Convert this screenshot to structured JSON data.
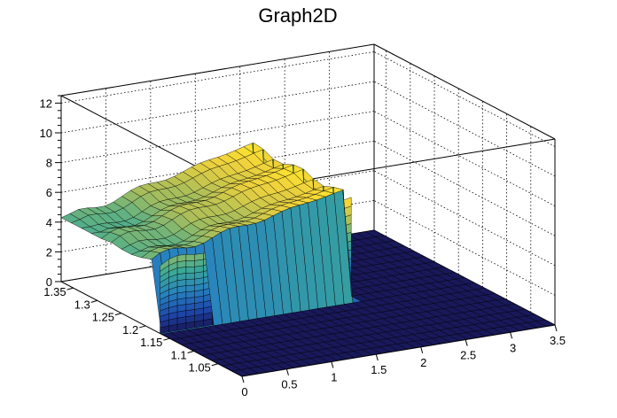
{
  "chart_data": {
    "type": "surface",
    "title": "Graph2D",
    "xlabel": "",
    "ylabel": "",
    "zlabel": "",
    "xlim": [
      0,
      3.5
    ],
    "ylim": [
      1.0,
      1.375
    ],
    "zlim": [
      0,
      12.5
    ],
    "x_ticks": [
      "0",
      "0.5",
      "1",
      "1.5",
      "2",
      "2.5",
      "3",
      "3.5"
    ],
    "y_ticks": [
      "1.05",
      "1.1",
      "1.15",
      "1.2",
      "1.25",
      "1.3",
      "1.35"
    ],
    "z_ticks": [
      "0",
      "2",
      "4",
      "6",
      "8",
      "10",
      "12"
    ],
    "grid": true,
    "colormap": "viridis-like",
    "surface": {
      "x_range": [
        0,
        3.5
      ],
      "y_range": [
        1.0,
        1.375
      ],
      "plateau_x_edge": 2.15,
      "low_y_edge": 1.17,
      "plateau_z_min": 4.5,
      "plateau_z_max": 7.3,
      "floor_z": 0,
      "notes": "Plateau ~5-7 for x<2.2 and y>1.17; near 0 elsewhere"
    }
  }
}
